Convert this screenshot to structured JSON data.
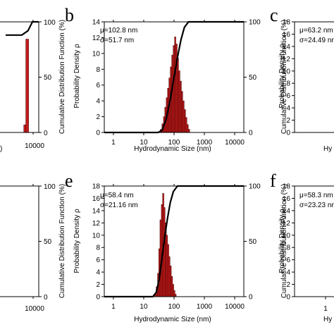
{
  "chart_data": [
    {
      "panel": "a (partial)",
      "type": "bar",
      "x_tick_labels": [
        "10000"
      ],
      "xlabel": "",
      "y2_tick_labels": [
        "0",
        "50",
        "100"
      ],
      "y2label": "Cumulative Distribution Function (%)",
      "y2lim": [
        0,
        100
      ],
      "visible_bars": [
        {
          "x": 5000,
          "value": 5
        },
        {
          "x": 5700,
          "value": 61
        }
      ],
      "cdf": [
        [
          1400,
          88
        ],
        [
          4000,
          88
        ],
        [
          6000,
          92
        ],
        [
          8000,
          100
        ],
        [
          20000,
          100
        ]
      ]
    },
    {
      "panel": "b",
      "type": "bar",
      "annotation": [
        "μ=102.8 nm",
        "σ=51.7 nm"
      ],
      "xlabel": "Hydrodynamic Size (nm)",
      "ylabel": "Probability Density ρ",
      "y2label": "Cumulative Distribution Function (%)",
      "x_scale": "log",
      "xlim": [
        0.5,
        20000
      ],
      "x_tick_labels": [
        "1",
        "10",
        "100",
        "1000",
        "10000"
      ],
      "ylim": [
        0,
        14
      ],
      "y_tick_labels": [
        "0",
        "2",
        "4",
        "6",
        "8",
        "10",
        "12",
        "14"
      ],
      "y2lim": [
        0,
        100
      ],
      "y2_tick_labels": [
        "0",
        "50",
        "100"
      ],
      "bars": [
        {
          "x": 37,
          "value": 0.4
        },
        {
          "x": 42,
          "value": 1.1
        },
        {
          "x": 47,
          "value": 2.0
        },
        {
          "x": 52,
          "value": 3.2
        },
        {
          "x": 58,
          "value": 4.4
        },
        {
          "x": 64,
          "value": 5.6
        },
        {
          "x": 71,
          "value": 6.9
        },
        {
          "x": 79,
          "value": 8.3
        },
        {
          "x": 88,
          "value": 9.8
        },
        {
          "x": 98,
          "value": 11.0
        },
        {
          "x": 109,
          "value": 12.1
        },
        {
          "x": 121,
          "value": 11.2
        },
        {
          "x": 134,
          "value": 9.4
        },
        {
          "x": 149,
          "value": 7.8
        },
        {
          "x": 166,
          "value": 6.5
        },
        {
          "x": 184,
          "value": 5.2
        },
        {
          "x": 205,
          "value": 4.0
        },
        {
          "x": 228,
          "value": 2.9
        },
        {
          "x": 253,
          "value": 1.9
        },
        {
          "x": 281,
          "value": 1.0
        },
        {
          "x": 312,
          "value": 0.4
        }
      ],
      "cdf": [
        [
          0.5,
          0
        ],
        [
          30,
          0
        ],
        [
          40,
          2
        ],
        [
          55,
          12
        ],
        [
          75,
          30
        ],
        [
          100,
          50
        ],
        [
          130,
          68
        ],
        [
          170,
          84
        ],
        [
          220,
          95
        ],
        [
          300,
          100
        ],
        [
          20000,
          100
        ]
      ]
    },
    {
      "panel": "c (partial)",
      "type": "bar",
      "annotation": [
        "μ=63.2 nm",
        "σ=24.49 nm"
      ],
      "ylabel": "Probability Density ρ",
      "xlabel": "Hy",
      "ylim": [
        0,
        18
      ],
      "y_tick_labels": [
        "0",
        "2",
        "4",
        "6",
        "8",
        "10",
        "12",
        "14",
        "16",
        "18"
      ]
    },
    {
      "panel": "d (partial)",
      "type": "bar",
      "x_tick_labels": [
        "10000"
      ],
      "y2label": "Cumulative Distribution Function (%)",
      "y2lim": [
        0,
        100
      ],
      "y2_tick_labels": [
        "0",
        "50",
        "100"
      ]
    },
    {
      "panel": "e",
      "type": "bar",
      "annotation": [
        "μ=58.4 nm",
        "σ=21.16 nm"
      ],
      "xlabel": "Hydrodynamic Size (nm)",
      "ylabel": "Probability Density ρ",
      "y2label": "Cumulative Distribution Function (%)",
      "x_scale": "log",
      "xlim": [
        0.5,
        20000
      ],
      "x_tick_labels": [
        "1",
        "10",
        "100",
        "1000",
        "10000"
      ],
      "ylim": [
        0,
        18
      ],
      "y_tick_labels": [
        "0",
        "2",
        "4",
        "6",
        "8",
        "10",
        "12",
        "14",
        "16",
        "18"
      ],
      "y2lim": [
        0,
        100
      ],
      "y2_tick_labels": [
        "0",
        "50",
        "100"
      ],
      "bars": [
        {
          "x": 24,
          "value": 0.4
        },
        {
          "x": 27,
          "value": 1.6
        },
        {
          "x": 30,
          "value": 3.8
        },
        {
          "x": 33,
          "value": 7.8
        },
        {
          "x": 36,
          "value": 12.5
        },
        {
          "x": 40,
          "value": 15.0
        },
        {
          "x": 44,
          "value": 16.8
        },
        {
          "x": 48,
          "value": 14.5
        },
        {
          "x": 53,
          "value": 12.0
        },
        {
          "x": 58,
          "value": 10.0
        },
        {
          "x": 64,
          "value": 8.5
        },
        {
          "x": 70,
          "value": 6.5
        },
        {
          "x": 77,
          "value": 5.0
        },
        {
          "x": 85,
          "value": 3.3
        },
        {
          "x": 93,
          "value": 2.0
        },
        {
          "x": 102,
          "value": 1.0
        },
        {
          "x": 112,
          "value": 0.4
        }
      ],
      "cdf": [
        [
          0.5,
          0
        ],
        [
          20,
          0
        ],
        [
          26,
          4
        ],
        [
          32,
          15
        ],
        [
          40,
          35
        ],
        [
          50,
          55
        ],
        [
          60,
          70
        ],
        [
          75,
          85
        ],
        [
          95,
          95
        ],
        [
          130,
          100
        ],
        [
          20000,
          100
        ]
      ]
    },
    {
      "panel": "f (partial)",
      "type": "bar",
      "annotation": [
        "μ=58.3 nm",
        "σ=23.23 nm"
      ],
      "ylabel": "Probability Density ρ",
      "xlabel": "Hy",
      "x_tick_labels": [
        "1"
      ],
      "ylim": [
        0,
        18
      ],
      "y_tick_labels": [
        "0",
        "2",
        "4",
        "6",
        "8",
        "10",
        "12",
        "14",
        "16",
        "18"
      ]
    }
  ],
  "panel_letters": {
    "b": "b",
    "c": "c",
    "e": "e",
    "f": "f"
  },
  "colors": {
    "bar": "#c41a1a",
    "bar_edge": "#3a0000",
    "axis": "#000000",
    "cdf": "#000000"
  }
}
